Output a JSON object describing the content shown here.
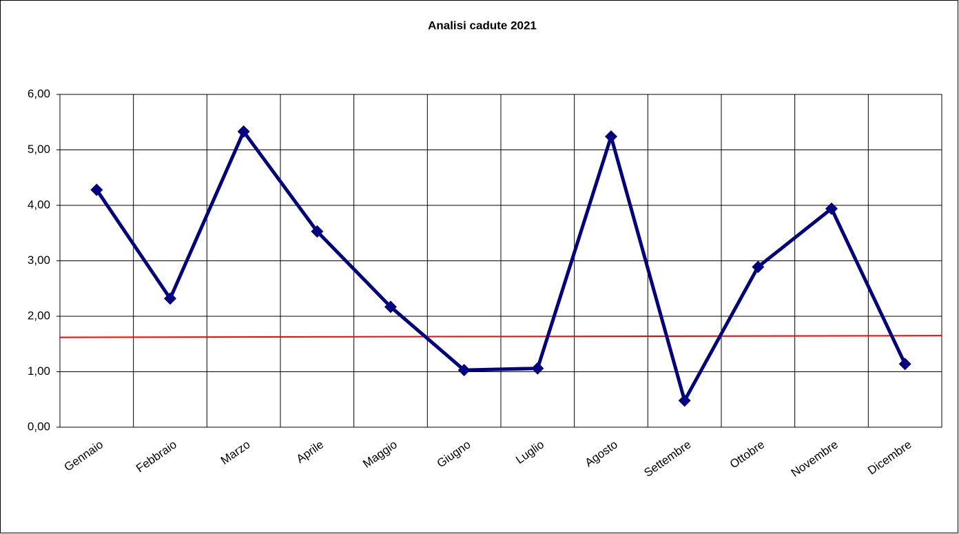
{
  "chart_data": {
    "type": "line",
    "title": "Analisi cadute 2021",
    "categories": [
      "Gennaio",
      "Febbraio",
      "Marzo",
      "Aprile",
      "Maggio",
      "Giugno",
      "Luglio",
      "Agosto",
      "Settembre",
      "Ottobre",
      "Novembre",
      "Dicembre"
    ],
    "series": [
      {
        "color": "#000080",
        "values": [
          4.28,
          2.32,
          5.33,
          3.53,
          2.17,
          1.03,
          1.06,
          5.24,
          0.48,
          2.89,
          3.94,
          1.14
        ]
      }
    ],
    "reference_line": {
      "color": "#ff0000",
      "values": [
        1.62,
        1.65
      ]
    },
    "ylim": [
      0,
      6
    ],
    "yticks": [
      {
        "value": 0,
        "label": "0,00"
      },
      {
        "value": 1,
        "label": "1,00"
      },
      {
        "value": 2,
        "label": "2,00"
      },
      {
        "value": 3,
        "label": "3,00"
      },
      {
        "value": 4,
        "label": "4,00"
      },
      {
        "value": 5,
        "label": "5,00"
      },
      {
        "value": 6,
        "label": "6,00"
      }
    ],
    "grid": true
  }
}
